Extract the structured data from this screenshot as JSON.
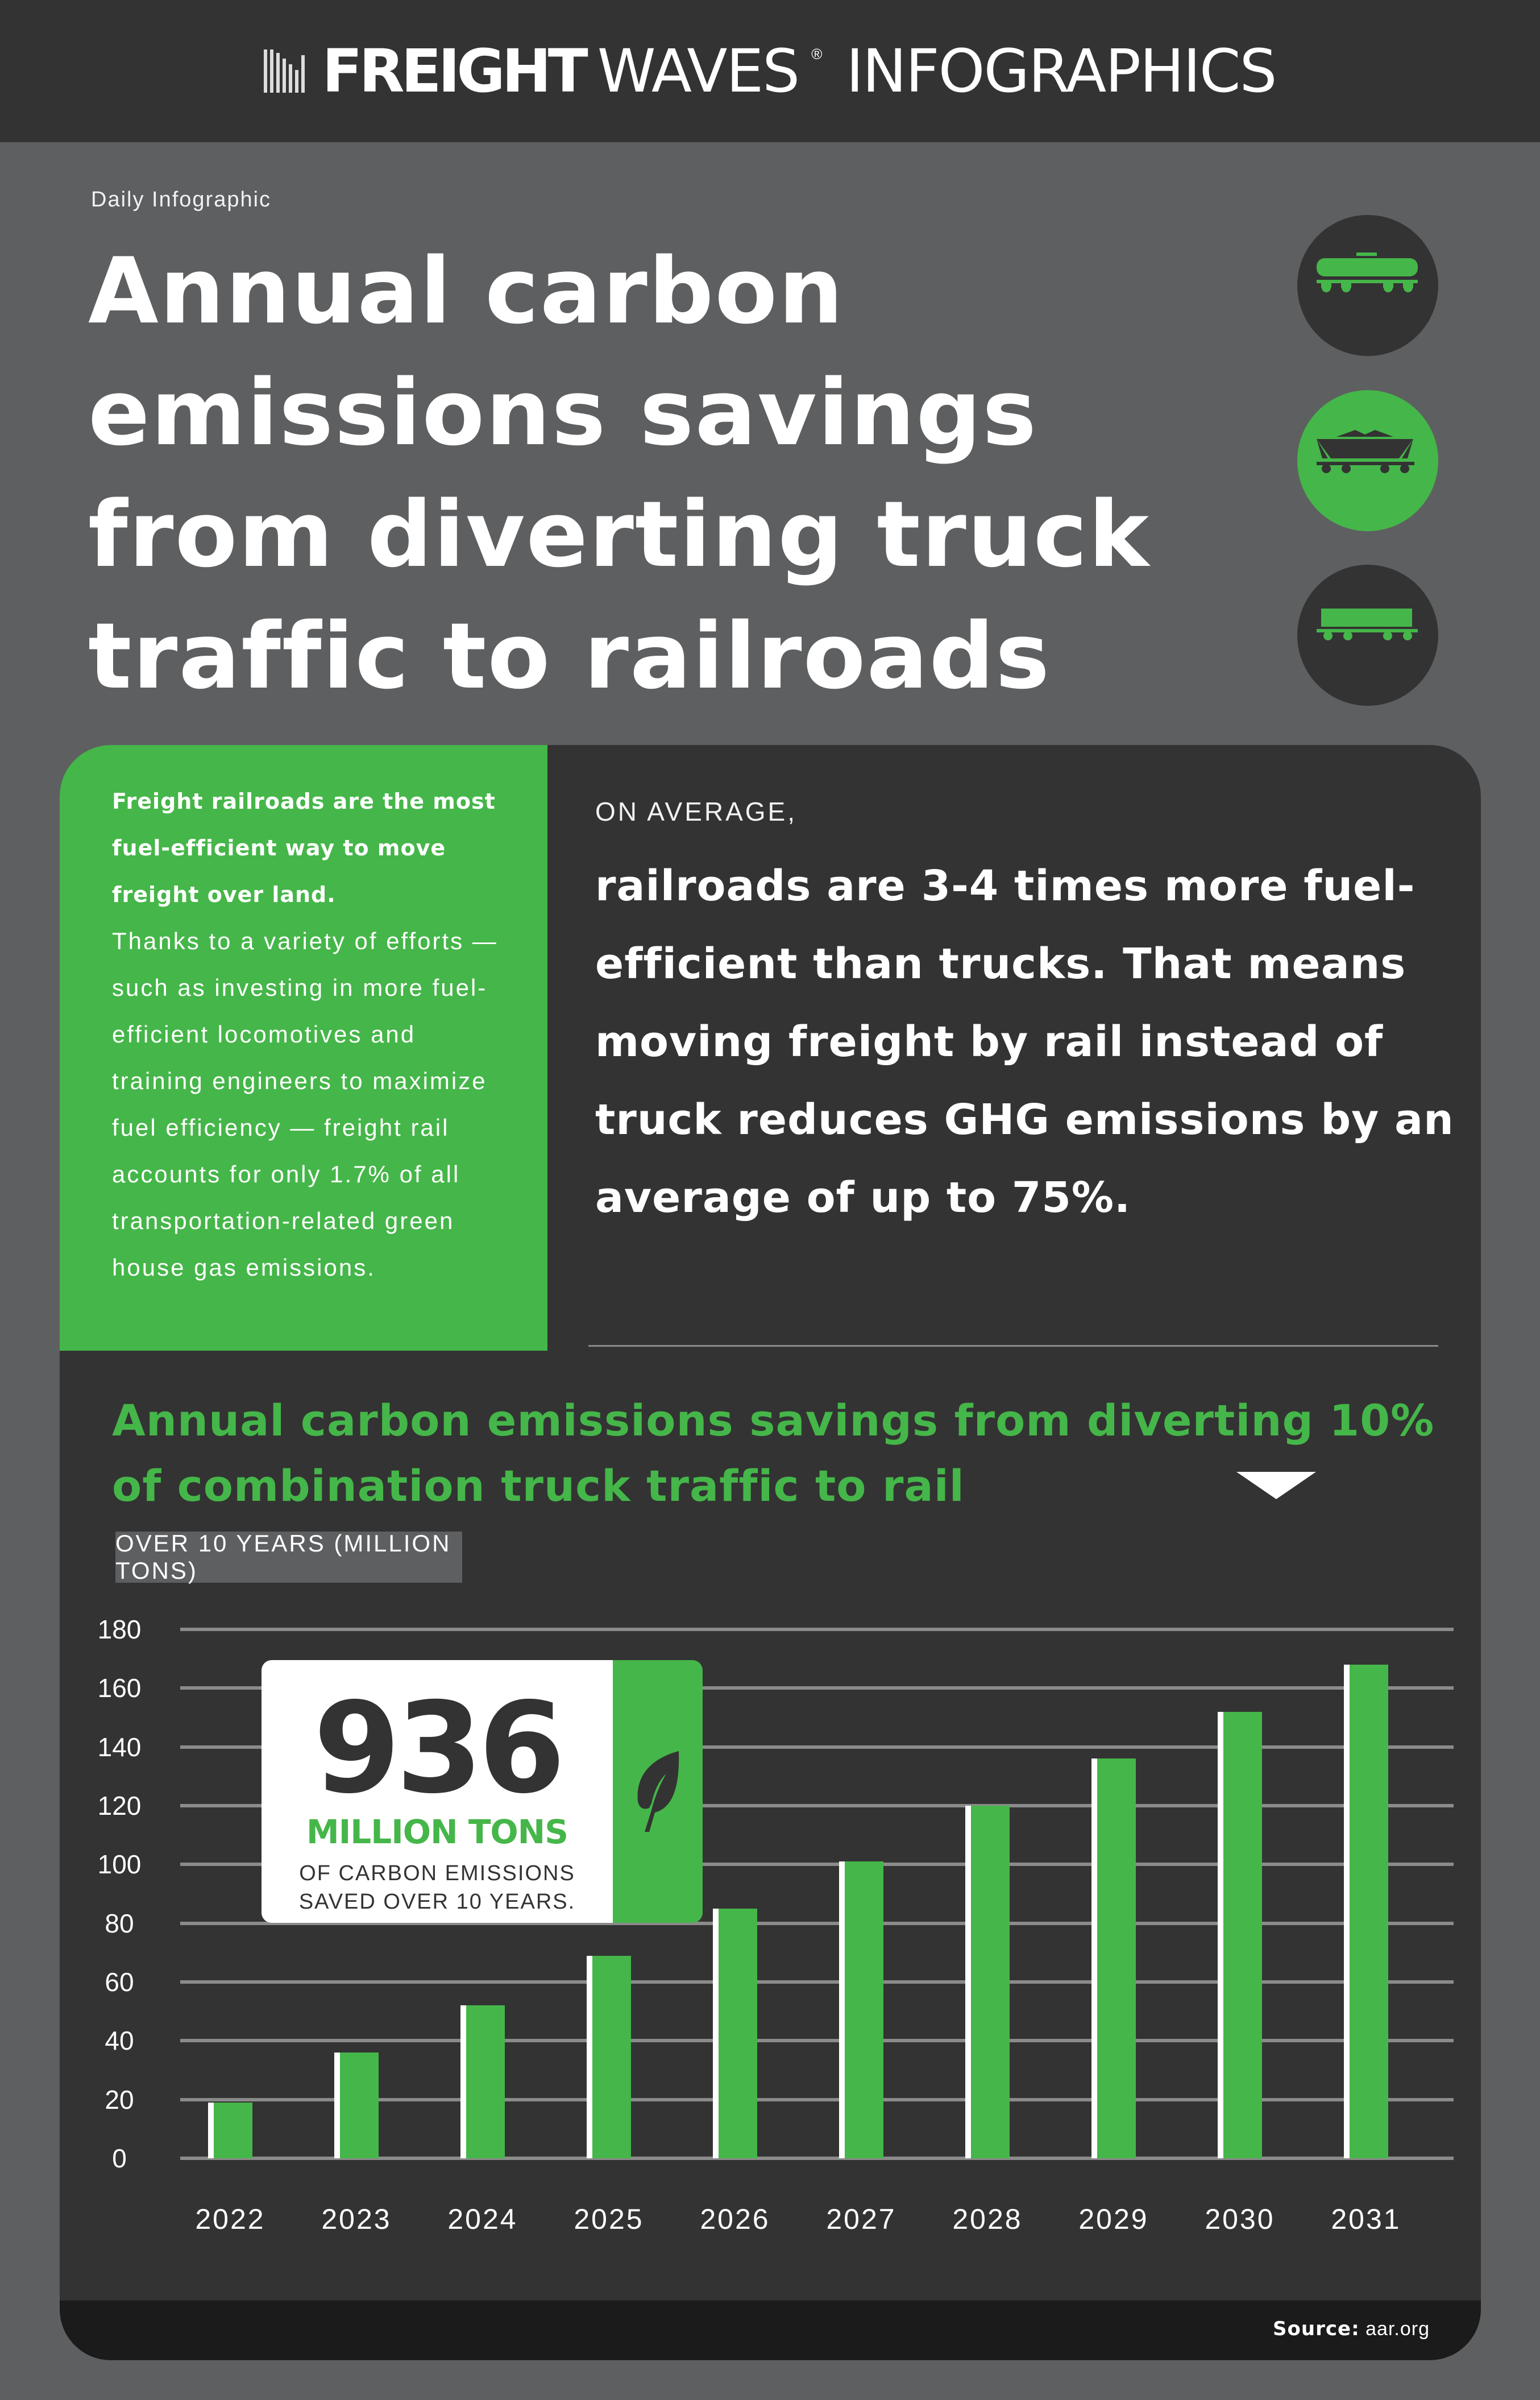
{
  "header": {
    "brand_strong": "FREIGHT",
    "brand_light": "WAVES",
    "brand_reg": "®",
    "brand_suffix": "INFOGRAPHICS"
  },
  "intro": {
    "eyebrow": "Daily Infographic",
    "headline": "Annual carbon emissions savings from diverting truck traffic to railroads"
  },
  "icons": [
    {
      "name": "tank-car-icon",
      "style": "dark"
    },
    {
      "name": "hopper-car-icon",
      "style": "green"
    },
    {
      "name": "boxcar-icon",
      "style": "dark"
    }
  ],
  "green_box": {
    "bold_text": "Freight railroads are the most fuel-efficient way to move freight over land.",
    "body_text": "Thanks to a variety of efforts — such as investing in more fuel-efficient locomotives and training engineers to maximize fuel efficiency — freight rail accounts for only 1.7% of all transportation-related green house gas emissions."
  },
  "stat": {
    "lead": "ON AVERAGE,",
    "text": "railroads are 3-4 times more fuel-efficient than trucks. That means moving freight by rail instead of truck reduces GHG emissions by an average of up to 75%."
  },
  "chart_section": {
    "title": "Annual carbon emissions savings from diverting 10% of combination truck traffic to rail",
    "unit_label": "OVER 10 YEARS (MILLION TONS)"
  },
  "callout": {
    "number": "936",
    "unit": "MILLION TONS",
    "line1": "OF CARBON EMISSIONS",
    "line2": "SAVED OVER 10 YEARS.",
    "icon": "leaf-icon"
  },
  "footer": {
    "source_label": "Source:",
    "source_value": "aar.org"
  },
  "colors": {
    "green": "#45b649",
    "dark": "#333333",
    "background": "#5e5f61",
    "footer": "#1b1b1b"
  },
  "chart_data": {
    "type": "bar",
    "title": "Annual carbon emissions savings from diverting 10% of combination truck traffic to rail",
    "subtitle": "OVER 10 YEARS (MILLION TONS)",
    "xlabel": "",
    "ylabel": "Million tons",
    "categories": [
      "2022",
      "2023",
      "2024",
      "2025",
      "2026",
      "2027",
      "2028",
      "2029",
      "2030",
      "2031"
    ],
    "values": [
      19,
      36,
      52,
      69,
      85,
      101,
      120,
      136,
      152,
      168
    ],
    "y_ticks": [
      0,
      20,
      40,
      60,
      80,
      100,
      120,
      140,
      160,
      180
    ],
    "ylim": [
      0,
      180
    ],
    "grid": true,
    "legend": "none",
    "annotations": [
      "936 MILLION TONS OF CARBON EMISSIONS SAVED OVER 10 YEARS."
    ]
  }
}
